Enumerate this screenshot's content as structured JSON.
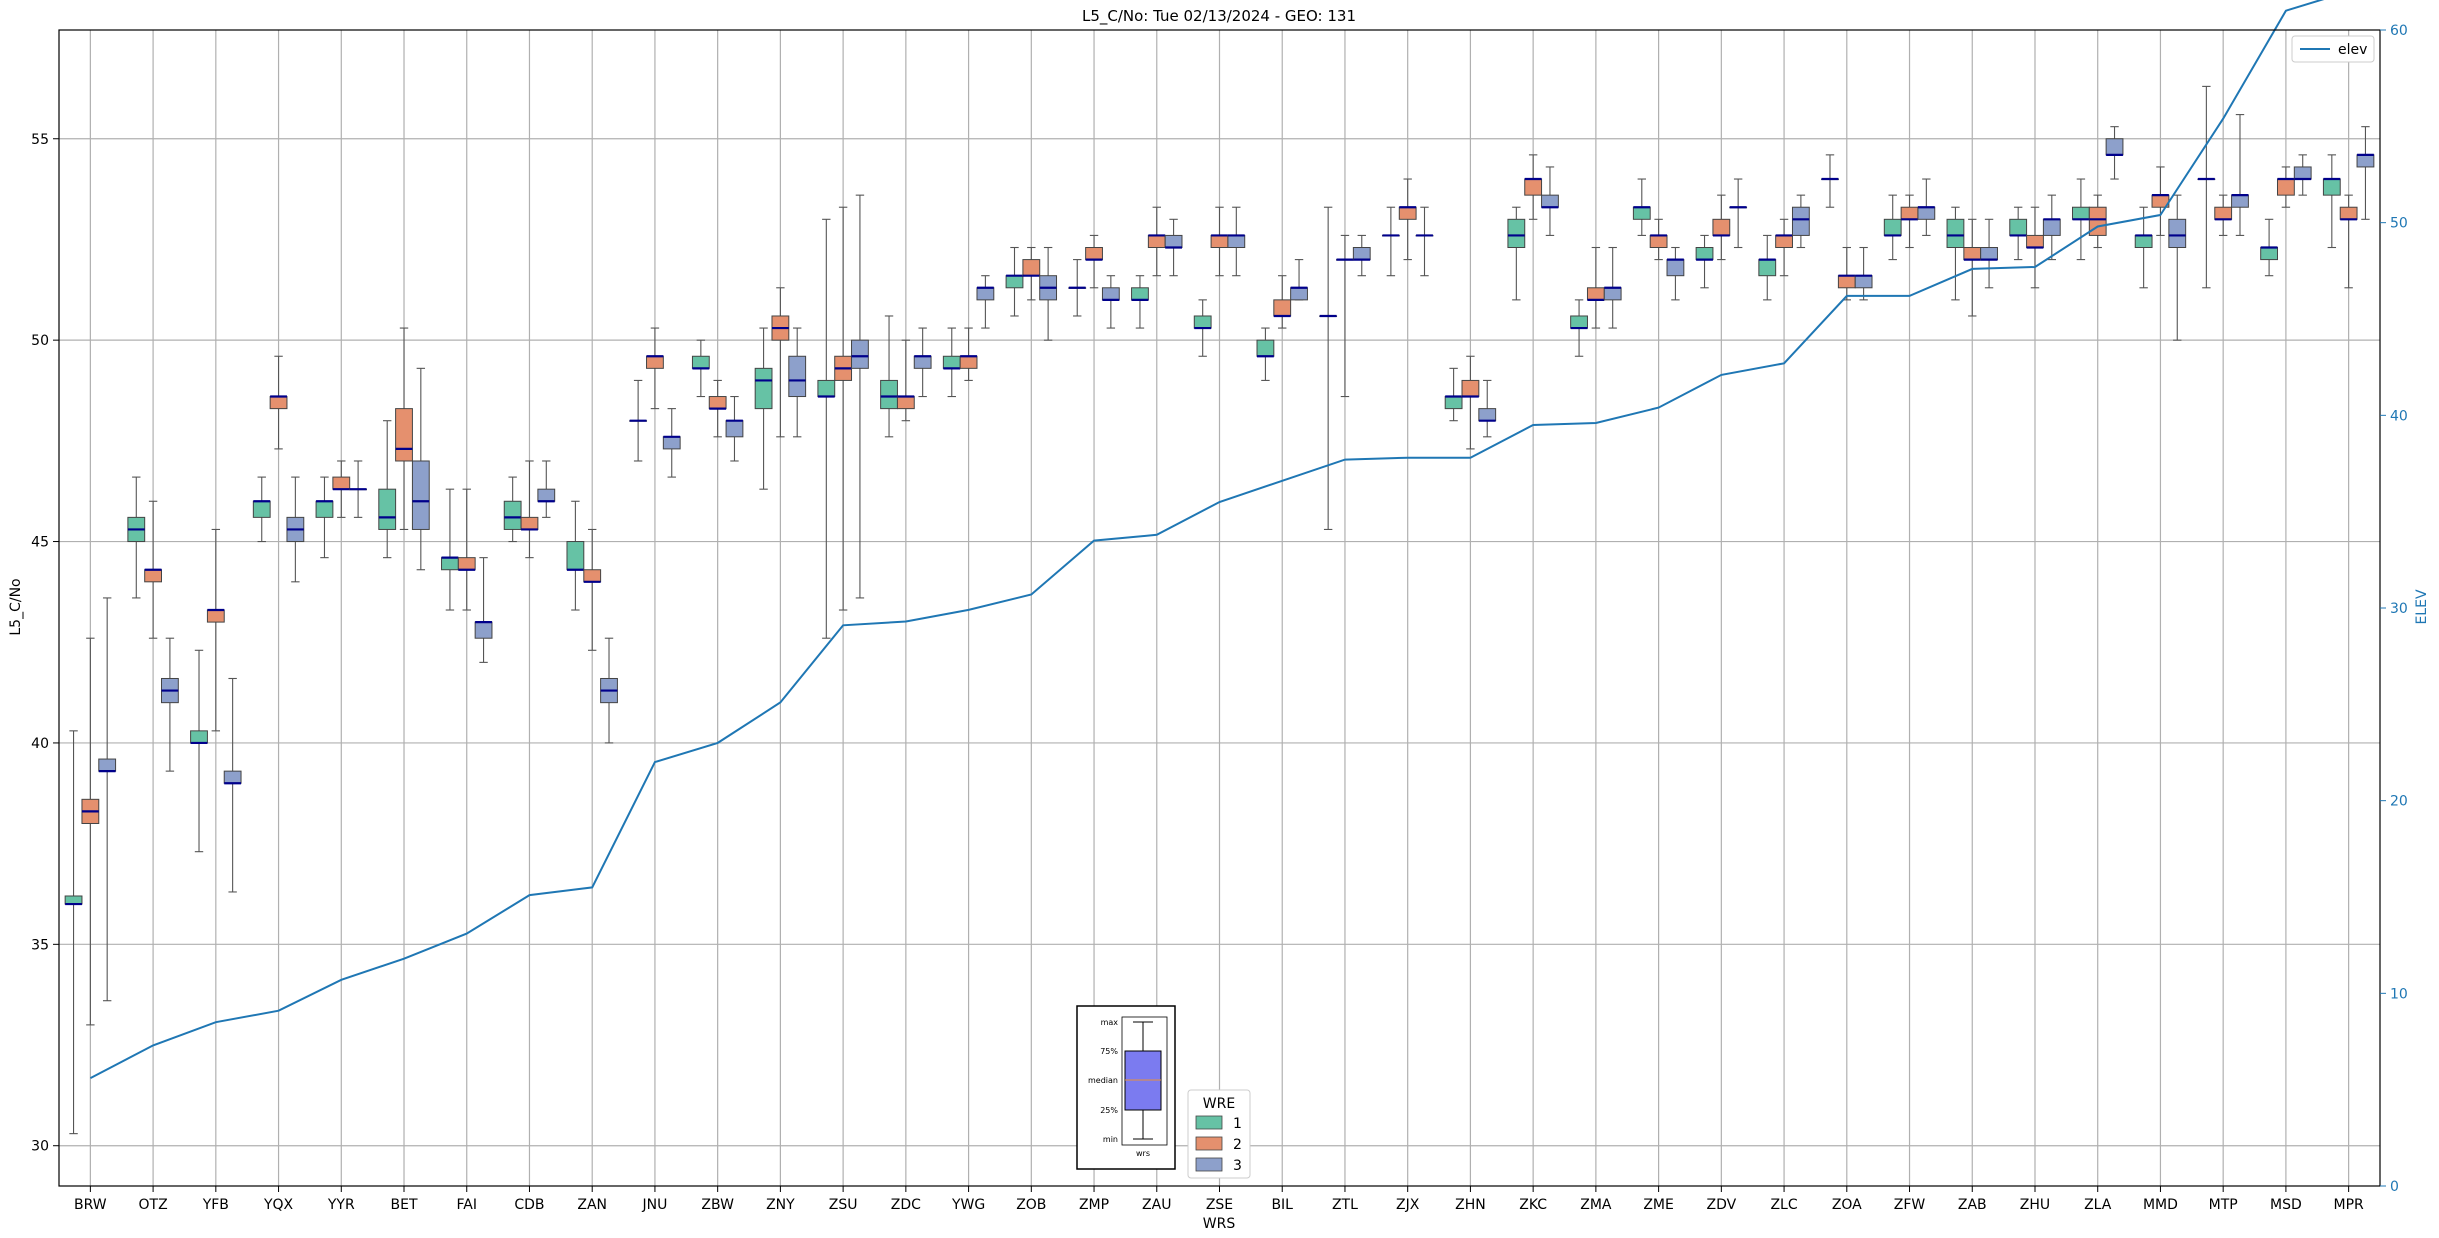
{
  "chart_data": {
    "type": "box",
    "title": "L5_C/No: Tue 02/13/2024 - GEO: 131",
    "xlabel": "WRS",
    "ylabel": "L5_C/No",
    "y2label": "ELEV",
    "ylim": [
      29.0,
      57.7
    ],
    "y2lim": [
      0,
      60.0
    ],
    "yticks": [
      30,
      35,
      40,
      45,
      50,
      55
    ],
    "y2ticks": [
      0,
      10,
      20,
      30,
      40,
      50,
      60
    ],
    "grid": true,
    "categories": [
      "BRW",
      "OTZ",
      "YFB",
      "YQX",
      "YYR",
      "BET",
      "FAI",
      "CDB",
      "ZAN",
      "JNU",
      "ZBW",
      "ZNY",
      "ZSU",
      "ZDC",
      "YWG",
      "ZOB",
      "ZMP",
      "ZAU",
      "ZSE",
      "BIL",
      "ZTL",
      "ZJX",
      "ZHN",
      "ZKC",
      "ZMA",
      "ZME",
      "ZDV",
      "ZLC",
      "ZOA",
      "ZFW",
      "ZAB",
      "ZHU",
      "ZLA",
      "MMD",
      "MTP",
      "MSD",
      "MPR"
    ],
    "legend_title": "WRE",
    "legend_position": "lower-center",
    "series": [
      {
        "name": "1",
        "color": "#66c2a5",
        "boxes": [
          [
            30.3,
            36.0,
            36.0,
            36.2,
            40.3
          ],
          [
            43.6,
            45.0,
            45.3,
            45.6,
            46.6
          ],
          [
            37.3,
            40.0,
            40.0,
            40.3,
            42.3
          ],
          [
            45.0,
            45.6,
            46.0,
            46.0,
            46.6
          ],
          [
            44.6,
            45.6,
            46.0,
            46.0,
            46.6
          ],
          [
            44.6,
            45.3,
            45.6,
            46.3,
            48.0
          ],
          [
            43.3,
            44.3,
            44.6,
            44.6,
            46.3
          ],
          [
            45.0,
            45.3,
            45.6,
            46.0,
            46.6
          ],
          [
            43.3,
            44.3,
            44.3,
            45.0,
            46.0
          ],
          [
            47.0,
            48.0,
            48.0,
            48.0,
            49.0
          ],
          [
            48.6,
            49.3,
            49.3,
            49.6,
            50.0
          ],
          [
            46.3,
            48.3,
            49.0,
            49.3,
            50.3
          ],
          [
            42.6,
            48.6,
            48.6,
            49.0,
            53.0
          ],
          [
            47.6,
            48.3,
            48.6,
            49.0,
            50.6
          ],
          [
            48.6,
            49.3,
            49.3,
            49.6,
            50.3
          ],
          [
            50.6,
            51.3,
            51.6,
            51.6,
            52.3
          ],
          [
            50.6,
            51.3,
            51.3,
            51.3,
            52.0
          ],
          [
            50.3,
            51.0,
            51.0,
            51.3,
            51.6
          ],
          [
            49.6,
            50.3,
            50.3,
            50.6,
            51.0
          ],
          [
            49.0,
            49.6,
            49.6,
            50.0,
            50.3
          ],
          [
            45.3,
            50.6,
            50.6,
            50.6,
            53.3
          ],
          [
            51.6,
            52.6,
            52.6,
            52.6,
            53.3
          ],
          [
            48.0,
            48.3,
            48.6,
            48.6,
            49.3
          ],
          [
            51.0,
            52.3,
            52.6,
            53.0,
            53.3
          ],
          [
            49.6,
            50.3,
            50.3,
            50.6,
            51.0
          ],
          [
            52.6,
            53.0,
            53.3,
            53.3,
            54.0
          ],
          [
            51.3,
            52.0,
            52.0,
            52.3,
            52.6
          ],
          [
            51.0,
            51.6,
            52.0,
            52.0,
            52.6
          ],
          [
            53.3,
            54.0,
            54.0,
            54.0,
            54.6
          ],
          [
            52.0,
            52.6,
            52.6,
            53.0,
            53.6
          ],
          [
            51.0,
            52.3,
            52.6,
            53.0,
            53.3
          ],
          [
            52.0,
            52.6,
            52.6,
            53.0,
            53.3
          ],
          [
            52.0,
            53.0,
            53.0,
            53.3,
            54.0
          ],
          [
            51.3,
            52.3,
            52.6,
            52.6,
            53.3
          ],
          [
            51.3,
            54.0,
            54.0,
            54.0,
            56.3
          ],
          [
            51.6,
            52.0,
            52.3,
            52.3,
            53.0
          ],
          [
            52.3,
            53.6,
            54.0,
            54.0,
            54.6
          ]
        ]
      },
      {
        "name": "2",
        "color": "#e5906e",
        "boxes": [
          [
            33.0,
            38.0,
            38.3,
            38.6,
            42.6
          ],
          [
            42.6,
            44.0,
            44.3,
            44.3,
            46.0
          ],
          [
            40.3,
            43.0,
            43.3,
            43.3,
            45.3
          ],
          [
            47.3,
            48.3,
            48.6,
            48.6,
            49.6
          ],
          [
            45.6,
            46.3,
            46.3,
            46.6,
            47.0
          ],
          [
            45.3,
            47.0,
            47.3,
            48.3,
            50.3
          ],
          [
            43.3,
            44.3,
            44.3,
            44.6,
            46.3
          ],
          [
            44.6,
            45.3,
            45.3,
            45.6,
            47.0
          ],
          [
            42.3,
            44.0,
            44.0,
            44.3,
            45.3
          ],
          [
            48.3,
            49.3,
            49.6,
            49.6,
            50.3
          ],
          [
            47.6,
            48.3,
            48.3,
            48.6,
            49.0
          ],
          [
            47.6,
            50.0,
            50.3,
            50.6,
            51.3
          ],
          [
            43.3,
            49.0,
            49.3,
            49.6,
            53.3
          ],
          [
            48.0,
            48.3,
            48.6,
            48.6,
            50.0
          ],
          [
            49.0,
            49.3,
            49.6,
            49.6,
            50.3
          ],
          [
            51.0,
            51.6,
            51.6,
            52.0,
            52.3
          ],
          [
            51.3,
            52.0,
            52.0,
            52.3,
            52.6
          ],
          [
            51.6,
            52.3,
            52.6,
            52.6,
            53.3
          ],
          [
            51.6,
            52.3,
            52.6,
            52.6,
            53.3
          ],
          [
            50.3,
            50.6,
            50.6,
            51.0,
            51.6
          ],
          [
            48.6,
            52.0,
            52.0,
            52.0,
            52.6
          ],
          [
            52.0,
            53.0,
            53.3,
            53.3,
            54.0
          ],
          [
            47.3,
            48.6,
            48.6,
            49.0,
            49.6
          ],
          [
            53.0,
            53.6,
            54.0,
            54.0,
            54.6
          ],
          [
            50.3,
            51.0,
            51.0,
            51.3,
            52.3
          ],
          [
            52.0,
            52.3,
            52.6,
            52.6,
            53.0
          ],
          [
            52.0,
            52.6,
            52.6,
            53.0,
            53.6
          ],
          [
            51.6,
            52.3,
            52.6,
            52.6,
            53.0
          ],
          [
            51.0,
            51.3,
            51.6,
            51.6,
            52.3
          ],
          [
            52.3,
            53.0,
            53.0,
            53.3,
            53.6
          ],
          [
            50.6,
            52.0,
            52.0,
            52.3,
            53.0
          ],
          [
            51.3,
            52.3,
            52.3,
            52.6,
            53.3
          ],
          [
            52.3,
            52.6,
            53.0,
            53.3,
            53.6
          ],
          [
            52.6,
            53.3,
            53.6,
            53.6,
            54.3
          ],
          [
            52.6,
            53.0,
            53.0,
            53.3,
            53.6
          ],
          [
            53.3,
            53.6,
            54.0,
            54.0,
            54.3
          ],
          [
            51.3,
            53.0,
            53.0,
            53.3,
            53.6
          ]
        ]
      },
      {
        "name": "3",
        "color": "#8da0cb",
        "boxes": [
          [
            33.6,
            39.3,
            39.3,
            39.6,
            43.6
          ],
          [
            39.3,
            41.0,
            41.3,
            41.6,
            42.6
          ],
          [
            36.3,
            39.0,
            39.0,
            39.3,
            41.6
          ],
          [
            44.0,
            45.0,
            45.3,
            45.6,
            46.6
          ],
          [
            45.6,
            46.3,
            46.3,
            46.3,
            47.0
          ],
          [
            44.3,
            45.3,
            46.0,
            47.0,
            49.3
          ],
          [
            42.0,
            42.6,
            43.0,
            43.0,
            44.6
          ],
          [
            45.6,
            46.0,
            46.0,
            46.3,
            47.0
          ],
          [
            40.0,
            41.0,
            41.3,
            41.6,
            42.6
          ],
          [
            46.6,
            47.3,
            47.6,
            47.6,
            48.3
          ],
          [
            47.0,
            47.6,
            48.0,
            48.0,
            48.6
          ],
          [
            47.6,
            48.6,
            49.0,
            49.6,
            50.3
          ],
          [
            43.6,
            49.3,
            49.6,
            50.0,
            53.6
          ],
          [
            48.6,
            49.3,
            49.6,
            49.6,
            50.3
          ],
          [
            50.3,
            51.0,
            51.3,
            51.3,
            51.6
          ],
          [
            50.0,
            51.0,
            51.3,
            51.6,
            52.3
          ],
          [
            50.3,
            51.0,
            51.0,
            51.3,
            51.6
          ],
          [
            51.6,
            52.3,
            52.3,
            52.6,
            53.0
          ],
          [
            51.6,
            52.3,
            52.6,
            52.6,
            53.3
          ],
          [
            51.0,
            51.0,
            51.3,
            51.3,
            52.0
          ],
          [
            51.6,
            52.0,
            52.0,
            52.3,
            52.6
          ],
          [
            51.6,
            52.6,
            52.6,
            52.6,
            53.3
          ],
          [
            47.6,
            48.0,
            48.0,
            48.3,
            49.0
          ],
          [
            52.6,
            53.3,
            53.3,
            53.6,
            54.3
          ],
          [
            50.3,
            51.0,
            51.3,
            51.3,
            52.3
          ],
          [
            51.0,
            51.6,
            52.0,
            52.0,
            52.3
          ],
          [
            52.3,
            53.3,
            53.3,
            53.3,
            54.0
          ],
          [
            52.3,
            52.6,
            53.0,
            53.3,
            53.6
          ],
          [
            51.0,
            51.3,
            51.6,
            51.6,
            52.3
          ],
          [
            52.6,
            53.0,
            53.3,
            53.3,
            54.0
          ],
          [
            51.3,
            52.0,
            52.0,
            52.3,
            53.0
          ],
          [
            52.0,
            52.6,
            53.0,
            53.0,
            53.6
          ],
          [
            54.0,
            54.6,
            54.6,
            55.0,
            55.3
          ],
          [
            50.0,
            52.3,
            52.6,
            53.0,
            53.6
          ],
          [
            52.6,
            53.3,
            53.6,
            53.6,
            55.6
          ],
          [
            53.6,
            54.0,
            54.0,
            54.3,
            54.6
          ],
          [
            53.0,
            54.3,
            54.6,
            54.6,
            55.3
          ]
        ]
      }
    ],
    "elev": {
      "name": "elev",
      "color": "#1f77b4",
      "values": [
        5.6,
        7.3,
        8.5,
        9.1,
        10.7,
        11.8,
        13.1,
        15.1,
        15.5,
        22.0,
        23.0,
        25.1,
        29.1,
        29.3,
        29.9,
        30.7,
        33.5,
        33.8,
        35.5,
        36.6,
        37.7,
        37.8,
        37.8,
        39.5,
        39.6,
        40.4,
        42.1,
        42.7,
        46.2,
        46.2,
        47.6,
        47.7,
        49.8,
        50.4,
        55.4,
        61.0,
        62.0
      ]
    },
    "inset_legend": {
      "labels": [
        "max",
        "75%",
        "median",
        "25%",
        "min"
      ],
      "xlabel": "wrs"
    }
  }
}
